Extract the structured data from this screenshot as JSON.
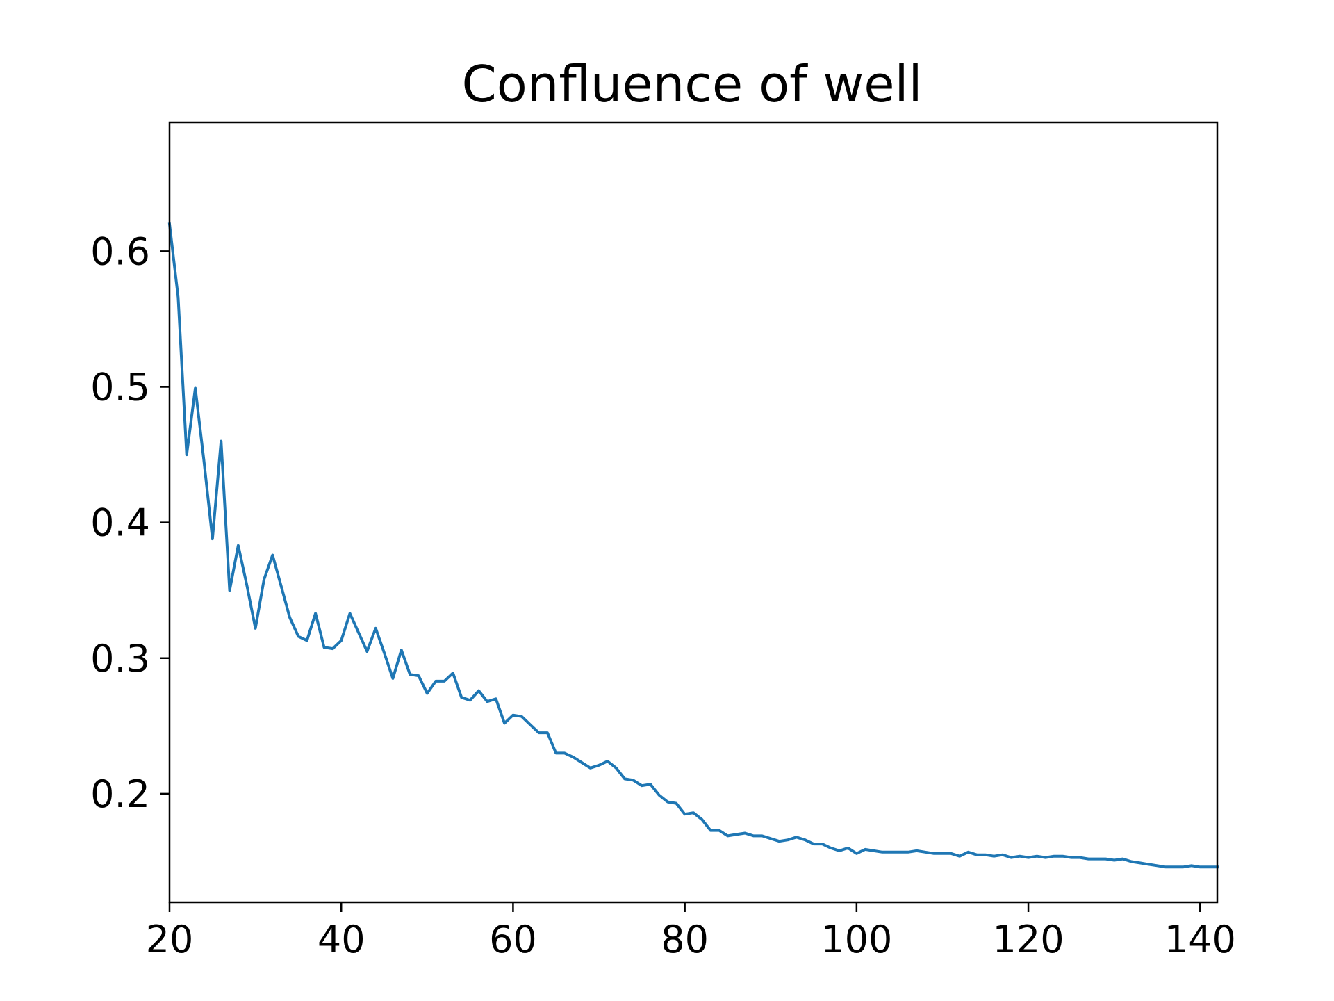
{
  "chart_data": {
    "type": "line",
    "title": "Confluence of well",
    "xlabel": "",
    "ylabel": "",
    "xlim": [
      20,
      142
    ],
    "ylim": [
      0.12,
      0.695
    ],
    "xticks": [
      20,
      40,
      60,
      80,
      100,
      120,
      140
    ],
    "xtick_labels": [
      "20",
      "40",
      "60",
      "80",
      "100",
      "120",
      "140"
    ],
    "yticks": [
      0.2,
      0.3,
      0.4,
      0.5,
      0.6
    ],
    "ytick_labels": [
      "0.2",
      "0.3",
      "0.4",
      "0.5",
      "0.6"
    ],
    "grid": false,
    "series": [
      {
        "color": "#1f77b4",
        "x": [
          20,
          21,
          22,
          23,
          24,
          25,
          26,
          27,
          28,
          29,
          30,
          31,
          32,
          33,
          34,
          35,
          36,
          37,
          38,
          39,
          40,
          41,
          42,
          43,
          44,
          45,
          46,
          47,
          48,
          49,
          50,
          51,
          52,
          53,
          54,
          55,
          56,
          57,
          58,
          59,
          60,
          61,
          62,
          63,
          64,
          65,
          66,
          67,
          68,
          69,
          70,
          71,
          72,
          73,
          74,
          75,
          76,
          77,
          78,
          79,
          80,
          81,
          82,
          83,
          84,
          85,
          86,
          87,
          88,
          89,
          90,
          91,
          92,
          93,
          94,
          95,
          96,
          97,
          98,
          99,
          100,
          101,
          102,
          103,
          104,
          105,
          106,
          107,
          108,
          109,
          110,
          111,
          112,
          113,
          114,
          115,
          116,
          117,
          118,
          119,
          120,
          121,
          122,
          123,
          124,
          125,
          126,
          127,
          128,
          129,
          130,
          131,
          132,
          133,
          134,
          135,
          136,
          137,
          138,
          139,
          140,
          141,
          142
        ],
        "y": [
          0.62,
          0.566,
          0.45,
          0.499,
          0.446,
          0.388,
          0.46,
          0.35,
          0.383,
          0.354,
          0.322,
          0.358,
          0.376,
          0.353,
          0.33,
          0.316,
          0.313,
          0.333,
          0.308,
          0.307,
          0.313,
          0.333,
          0.319,
          0.305,
          0.322,
          0.304,
          0.285,
          0.306,
          0.288,
          0.287,
          0.274,
          0.283,
          0.283,
          0.289,
          0.271,
          0.269,
          0.276,
          0.268,
          0.27,
          0.252,
          0.258,
          0.257,
          0.251,
          0.245,
          0.245,
          0.23,
          0.23,
          0.227,
          0.223,
          0.219,
          0.221,
          0.224,
          0.219,
          0.211,
          0.21,
          0.206,
          0.207,
          0.199,
          0.194,
          0.193,
          0.185,
          0.186,
          0.181,
          0.173,
          0.173,
          0.169,
          0.17,
          0.171,
          0.169,
          0.169,
          0.167,
          0.165,
          0.166,
          0.168,
          0.166,
          0.163,
          0.163,
          0.16,
          0.158,
          0.16,
          0.156,
          0.159,
          0.158,
          0.157,
          0.157,
          0.157,
          0.157,
          0.158,
          0.157,
          0.156,
          0.156,
          0.156,
          0.154,
          0.157,
          0.155,
          0.155,
          0.154,
          0.155,
          0.153,
          0.154,
          0.153,
          0.154,
          0.153,
          0.154,
          0.154,
          0.153,
          0.153,
          0.152,
          0.152,
          0.152,
          0.151,
          0.152,
          0.15,
          0.149,
          0.148,
          0.147,
          0.146,
          0.146,
          0.146,
          0.147,
          0.146,
          0.146,
          0.146
        ]
      }
    ]
  }
}
